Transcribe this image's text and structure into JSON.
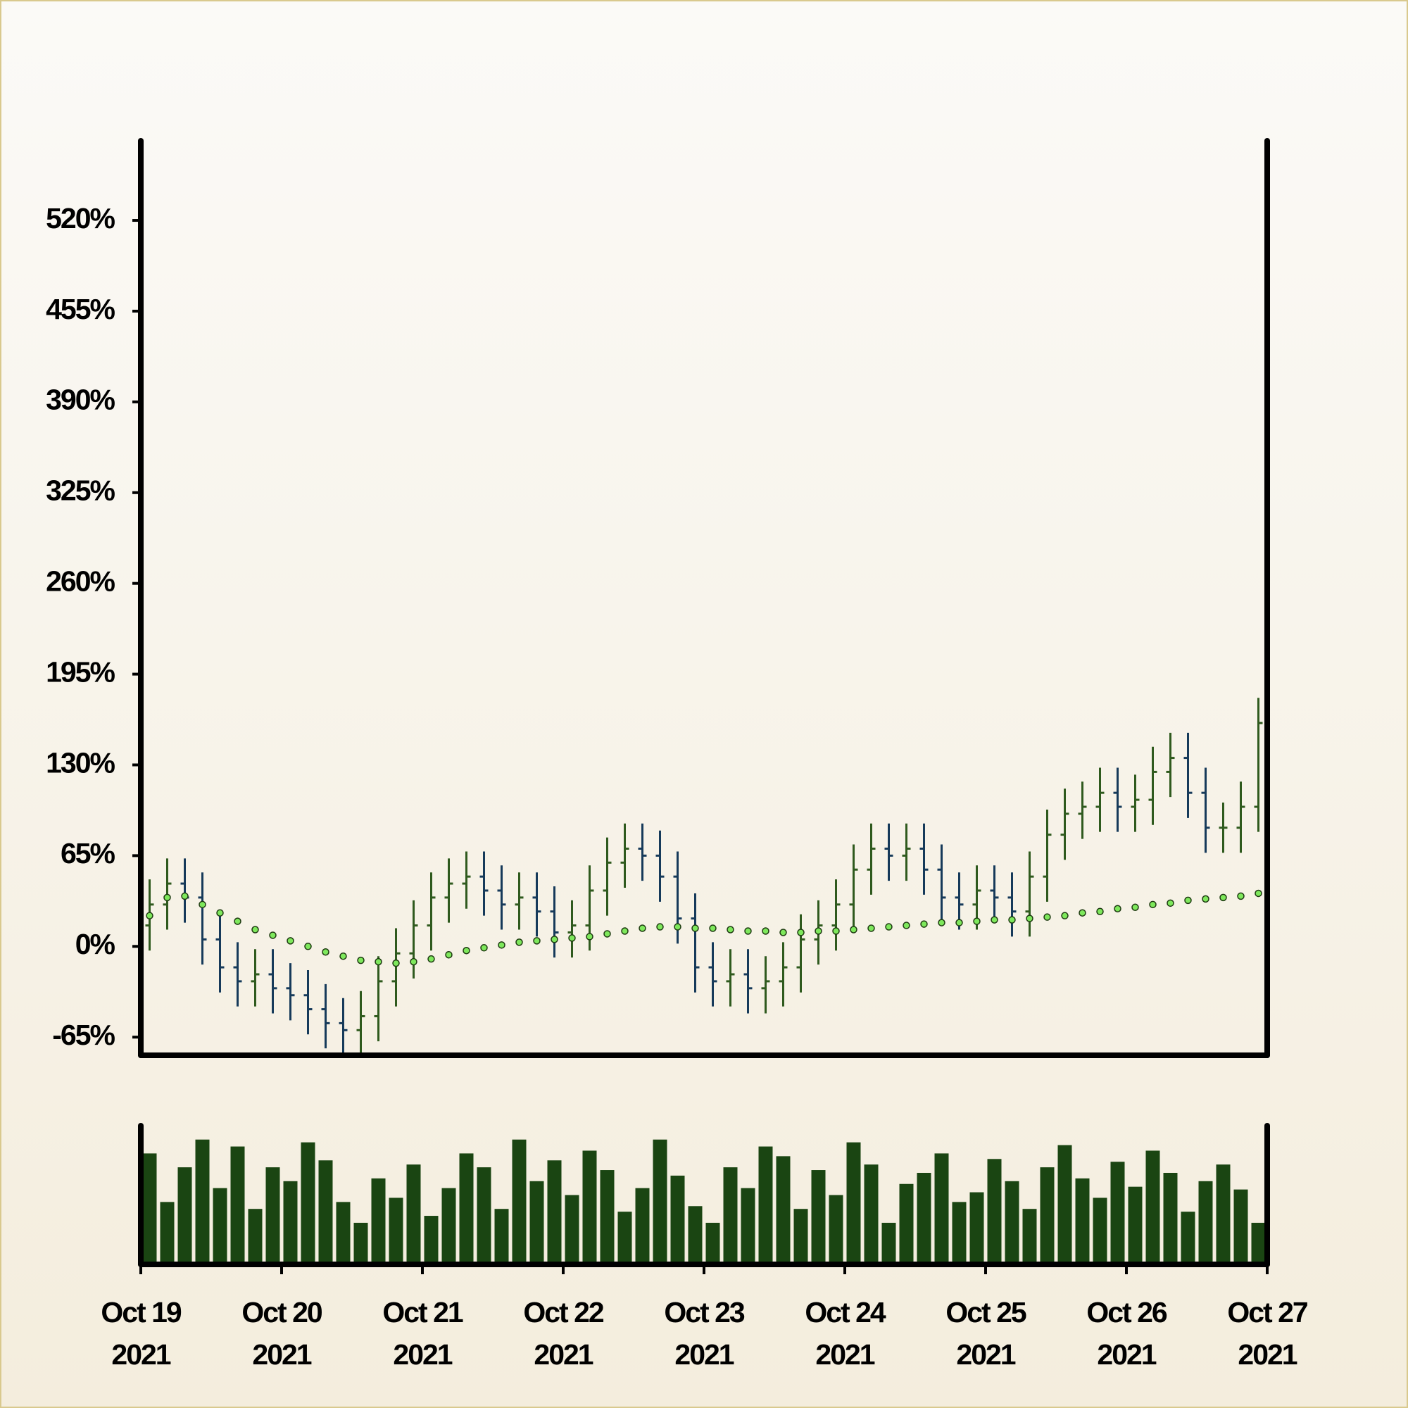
{
  "chart_data": {
    "type": "ohlc",
    "x": [
      0.0625,
      0.1875,
      0.3125,
      0.4375,
      0.5625,
      0.6875,
      0.8125,
      0.9375,
      1.0625,
      1.1875,
      1.3125,
      1.4375,
      1.5625,
      1.6875,
      1.8125,
      1.9375,
      2.0625,
      2.1875,
      2.3125,
      2.4375,
      2.5625,
      2.6875,
      2.8125,
      2.9375,
      3.0625,
      3.1875,
      3.3125,
      3.4375,
      3.5625,
      3.6875,
      3.8125,
      3.9375,
      4.0625,
      4.1875,
      4.3125,
      4.4375,
      4.5625,
      4.6875,
      4.8125,
      4.9375,
      5.0625,
      5.1875,
      5.3125,
      5.4375,
      5.5625,
      5.6875,
      5.8125,
      5.9375,
      6.0625,
      6.1875,
      6.3125,
      6.4375,
      6.5625,
      6.6875,
      6.8125,
      6.9375,
      7.0625,
      7.1875,
      7.3125,
      7.4375,
      7.5625,
      7.6875,
      7.8125,
      7.9375
    ],
    "open": [
      15,
      30,
      45,
      35,
      5,
      -15,
      -25,
      -20,
      -30,
      -35,
      -45,
      -55,
      -60,
      -50,
      -25,
      -5,
      15,
      35,
      45,
      50,
      40,
      30,
      35,
      25,
      10,
      15,
      40,
      60,
      70,
      65,
      50,
      20,
      -15,
      -25,
      -20,
      -30,
      -25,
      -15,
      5,
      15,
      30,
      55,
      70,
      65,
      70,
      55,
      35,
      30,
      40,
      35,
      25,
      50,
      80,
      95,
      100,
      110,
      100,
      105,
      125,
      135,
      110,
      85,
      85,
      100
    ],
    "high": [
      48,
      63,
      63,
      53,
      23,
      3,
      -2,
      -2,
      -12,
      -17,
      -27,
      -37,
      -32,
      -7,
      13,
      33,
      53,
      63,
      68,
      68,
      58,
      53,
      53,
      43,
      33,
      58,
      78,
      88,
      88,
      83,
      68,
      38,
      3,
      -2,
      -2,
      -7,
      3,
      23,
      33,
      48,
      73,
      88,
      88,
      88,
      88,
      73,
      53,
      58,
      58,
      53,
      68,
      98,
      113,
      118,
      128,
      128,
      123,
      143,
      153,
      153,
      128,
      103,
      118,
      178
    ],
    "low": [
      -3,
      12,
      17,
      -13,
      -33,
      -43,
      -43,
      -48,
      -53,
      -63,
      -73,
      -78,
      -78,
      -68,
      -43,
      -23,
      -3,
      17,
      27,
      22,
      12,
      12,
      7,
      -8,
      -8,
      -3,
      22,
      42,
      47,
      32,
      2,
      -33,
      -43,
      -43,
      -48,
      -48,
      -43,
      -33,
      -13,
      -3,
      12,
      37,
      47,
      47,
      37,
      17,
      12,
      12,
      17,
      7,
      7,
      32,
      62,
      77,
      82,
      82,
      82,
      87,
      107,
      92,
      67,
      67,
      67,
      82
    ],
    "close": [
      30,
      45,
      35,
      5,
      -15,
      -25,
      -20,
      -30,
      -35,
      -45,
      -55,
      -60,
      -50,
      -25,
      -5,
      15,
      35,
      45,
      50,
      40,
      30,
      35,
      25,
      10,
      15,
      40,
      60,
      70,
      65,
      50,
      20,
      -15,
      -25,
      -20,
      -30,
      -25,
      -15,
      5,
      15,
      30,
      55,
      70,
      65,
      70,
      55,
      35,
      30,
      40,
      35,
      25,
      50,
      80,
      95,
      100,
      110,
      100,
      105,
      125,
      135,
      110,
      85,
      85,
      100,
      160
    ],
    "up_color": "#2f5a1e",
    "down_color": "#163a5a",
    "moving_average": {
      "values": [
        22,
        35,
        36,
        30,
        24,
        18,
        12,
        8,
        4,
        0,
        -4,
        -7,
        -10,
        -11,
        -12,
        -11,
        -9,
        -6,
        -3,
        -1,
        1,
        3,
        4,
        5,
        6,
        7,
        9,
        11,
        13,
        14,
        14,
        13,
        13,
        12,
        11,
        11,
        10,
        10,
        11,
        11,
        12,
        13,
        14,
        15,
        16,
        17,
        17,
        18,
        19,
        19,
        20,
        21,
        22,
        24,
        25,
        27,
        28,
        30,
        31,
        33,
        34,
        35,
        36,
        38
      ],
      "color": "#7ee85c"
    },
    "volume": {
      "values": [
        80,
        45,
        70,
        90,
        55,
        85,
        40,
        70,
        60,
        88,
        75,
        45,
        30,
        62,
        48,
        72,
        35,
        55,
        80,
        70,
        40,
        90,
        60,
        75,
        50,
        82,
        68,
        38,
        55,
        90,
        64,
        42,
        30,
        70,
        55,
        85,
        78,
        40,
        68,
        50,
        88,
        72,
        30,
        58,
        66,
        80,
        45,
        52,
        76,
        60,
        40,
        70,
        86,
        62,
        48,
        74,
        56,
        82,
        66,
        38,
        60,
        72,
        54,
        30
      ],
      "color": "#1a4512",
      "ylim": [
        0,
        100
      ]
    },
    "xlim": [
      0,
      8
    ],
    "xticks": [
      {
        "value": 0,
        "label": "Oct 19\n2021"
      },
      {
        "value": 1,
        "label": "Oct 20\n2021"
      },
      {
        "value": 2,
        "label": "Oct 21\n2021"
      },
      {
        "value": 3,
        "label": "Oct 22\n2021"
      },
      {
        "value": 4,
        "label": "Oct 23\n2021"
      },
      {
        "value": 5,
        "label": "Oct 24\n2021"
      },
      {
        "value": 6,
        "label": "Oct 25\n2021"
      },
      {
        "value": 7,
        "label": "Oct 26\n2021"
      },
      {
        "value": 8,
        "label": "Oct 27\n2021"
      }
    ],
    "ylim": [
      -78,
      577
    ],
    "yticks": [
      {
        "value": -65,
        "label": "-65%"
      },
      {
        "value": 0,
        "label": "0%"
      },
      {
        "value": 65,
        "label": "65%"
      },
      {
        "value": 130,
        "label": "130%"
      },
      {
        "value": 195,
        "label": "195%"
      },
      {
        "value": 260,
        "label": "260%"
      },
      {
        "value": 325,
        "label": "325%"
      },
      {
        "value": 390,
        "label": "390%"
      },
      {
        "value": 455,
        "label": "455%"
      },
      {
        "value": 520,
        "label": "520%"
      }
    ]
  }
}
